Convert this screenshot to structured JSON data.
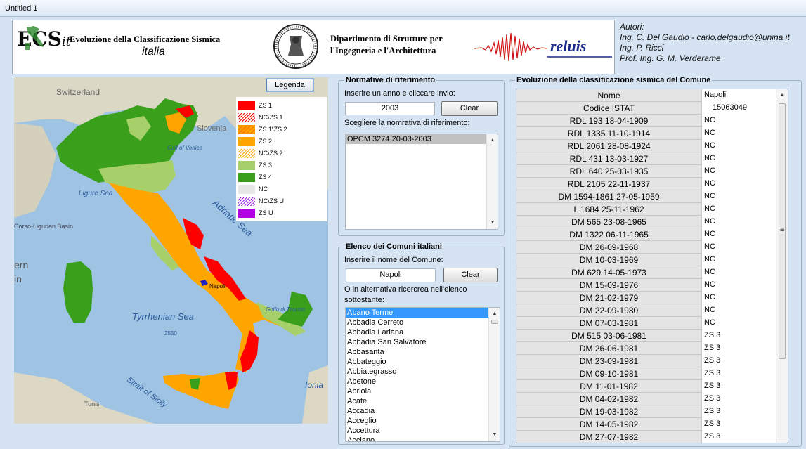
{
  "window": {
    "title": "Untitled 1"
  },
  "header": {
    "logo_text": "ECS",
    "logo_suffix": "it",
    "title": "Evoluzione della Classificazione Sismica",
    "subtitle": "italia",
    "dept_line1": "Dipartimento di Strutture per",
    "dept_line2": "l'Ingegneria e l'Architettura",
    "reluis_logo": "reluis",
    "authors": [
      "Autori:",
      "Ing. C. Del Gaudio - carlo.delgaudio@unina.it",
      "Ing. P. Ricci",
      "Prof. Ing. G. M. Verderame"
    ]
  },
  "map": {
    "labels": {
      "switzerland": "Switzerland",
      "slovenia": "Slovenia",
      "gulf_venice": "Gulf of Venice",
      "ligure_sea": "Ligure Sea",
      "corso_ligurian": "Corso-Ligurian Basin",
      "adriatic": "Adriatic Sea",
      "napoli": "Napoli",
      "tyrrhenian": "Tyrrhenian Sea",
      "golfo_taranto": "Golfo di Taranto",
      "strait_sicily": "Strait of Sicily",
      "tunis": "Tunis",
      "ionian": "Ionia",
      "ern": "ern",
      "in": "in",
      "depth": "2550"
    },
    "legend_button": "Legenda",
    "legend": [
      {
        "label": "ZS 1",
        "color": "#ff0000",
        "pattern": "solid"
      },
      {
        "label": "NC\\ZS 1",
        "color": "#ff0000",
        "pattern": "hatch"
      },
      {
        "label": "ZS 1\\ZS 2",
        "color": "#ff7f00",
        "pattern": "hatch2"
      },
      {
        "label": "ZS 2",
        "color": "#ffa500",
        "pattern": "solid"
      },
      {
        "label": "NC\\ZS 2",
        "color": "#ffa500",
        "pattern": "hatch"
      },
      {
        "label": "ZS 3",
        "color": "#a8d06a",
        "pattern": "solid"
      },
      {
        "label": "ZS 4",
        "color": "#3a9f1a",
        "pattern": "solid"
      },
      {
        "label": "NC",
        "color": "#e6e6e6",
        "pattern": "solid"
      },
      {
        "label": "NC\\ZS U",
        "color": "#a020f0",
        "pattern": "hatch"
      },
      {
        "label": "ZS U",
        "color": "#b000e0",
        "pattern": "solid"
      }
    ]
  },
  "normative": {
    "title": "Normative di riferimento",
    "year_prompt": "Inserire un anno e cliccare invio:",
    "year_value": "2003",
    "clear": "Clear",
    "choose_prompt": "Scegliere la nomrativa di riferimento:",
    "items": [
      "OPCM 3274 20-03-2003"
    ]
  },
  "comuni": {
    "title": "Elenco dei Comuni italiani",
    "name_prompt": "Inserire il nome del Comune:",
    "name_value": "Napoli",
    "clear": "Clear",
    "alt_prompt_1": "O in alternativa ricercrea nell'elenco",
    "alt_prompt_2": "sottostante:",
    "items": [
      "Abano Terme",
      "Abbadia Cerreto",
      "Abbadia Lariana",
      "Abbadia San Salvatore",
      "Abbasanta",
      "Abbateggio",
      "Abbiategrasso",
      "Abetone",
      "Abriola",
      "Acate",
      "Accadia",
      "Acceglio",
      "Accettura",
      "Acciano"
    ]
  },
  "evoluzione": {
    "title": "Evoluzione della classificazione sismica del Comune",
    "rows": [
      {
        "name": "Nome",
        "value": "Napoli"
      },
      {
        "name": "Codice ISTAT",
        "value": "15063049"
      },
      {
        "name": "RDL 193 18-04-1909",
        "value": "NC"
      },
      {
        "name": "RDL 1335 11-10-1914",
        "value": "NC"
      },
      {
        "name": "RDL 2061 28-08-1924",
        "value": "NC"
      },
      {
        "name": "RDL 431 13-03-1927",
        "value": "NC"
      },
      {
        "name": "RDL 640 25-03-1935",
        "value": "NC"
      },
      {
        "name": "RDL 2105 22-11-1937",
        "value": "NC"
      },
      {
        "name": "DM 1594-1861 27-05-1959",
        "value": "NC"
      },
      {
        "name": "L 1684 25-11-1962",
        "value": "NC"
      },
      {
        "name": "DM 565 23-08-1965",
        "value": "NC"
      },
      {
        "name": "DM 1322 06-11-1965",
        "value": "NC"
      },
      {
        "name": "DM  26-09-1968",
        "value": "NC"
      },
      {
        "name": "DM  10-03-1969",
        "value": "NC"
      },
      {
        "name": "DM 629 14-05-1973",
        "value": "NC"
      },
      {
        "name": "DM  15-09-1976",
        "value": "NC"
      },
      {
        "name": "DM  21-02-1979",
        "value": "NC"
      },
      {
        "name": "DM  22-09-1980",
        "value": "NC"
      },
      {
        "name": "DM  07-03-1981",
        "value": "NC"
      },
      {
        "name": "DM 515 03-06-1981",
        "value": "ZS 3"
      },
      {
        "name": "DM  26-06-1981",
        "value": "ZS 3"
      },
      {
        "name": "DM  23-09-1981",
        "value": "ZS 3"
      },
      {
        "name": "DM  09-10-1981",
        "value": "ZS 3"
      },
      {
        "name": "DM  11-01-1982",
        "value": "ZS 3"
      },
      {
        "name": "DM  04-02-1982",
        "value": "ZS 3"
      },
      {
        "name": "DM  19-03-1982",
        "value": "ZS 3"
      },
      {
        "name": "DM  14-05-1982",
        "value": "ZS 3"
      },
      {
        "name": "DM  27-07-1982",
        "value": "ZS 3"
      }
    ]
  }
}
